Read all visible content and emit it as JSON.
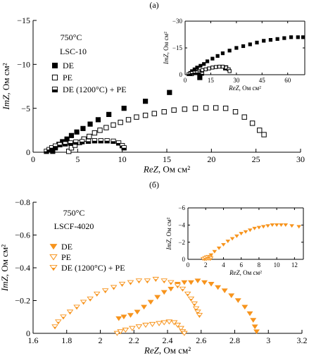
{
  "panel_labels": [
    "(а)",
    "(б)"
  ],
  "chart_data": [
    {
      "type": "scatter",
      "panel": "(а)",
      "xlabel_italic": "ReZ",
      "xlabel_unit": ", Ом см²",
      "ylabel_italic": "ImZ",
      "ylabel_unit": ", Ом см²",
      "annotations": [
        "750°C",
        "LSC-10"
      ],
      "xlim": [
        0,
        30
      ],
      "ylim": [
        0,
        -15
      ],
      "xticks": [
        0,
        5,
        10,
        15,
        20,
        25,
        30
      ],
      "yticks": [
        0,
        -5,
        -10,
        -15
      ],
      "series": [
        {
          "name": "DE",
          "marker": "filled-square",
          "color": "#000000",
          "points": [
            [
              2.2,
              -0.1
            ],
            [
              2.5,
              -0.5
            ],
            [
              2.9,
              -0.9
            ],
            [
              3.3,
              -1.2
            ],
            [
              3.8,
              -1.5
            ],
            [
              4.3,
              -1.9
            ],
            [
              4.9,
              -2.3
            ],
            [
              5.6,
              -2.7
            ],
            [
              6.4,
              -3.2
            ],
            [
              7.3,
              -3.7
            ],
            [
              8.5,
              -4.3
            ],
            [
              10.2,
              -5.0
            ],
            [
              12.6,
              -5.8
            ],
            [
              15.3,
              -6.8
            ],
            [
              18.7,
              -8.5
            ],
            [
              21.6,
              -9.6
            ]
          ]
        },
        {
          "name": "PE",
          "marker": "open-square",
          "color": "#000000",
          "points": [
            [
              4.0,
              -0.1
            ],
            [
              4.3,
              -0.5
            ],
            [
              4.7,
              -0.8
            ],
            [
              5.2,
              -1.1
            ],
            [
              5.7,
              -1.5
            ],
            [
              6.3,
              -1.8
            ],
            [
              6.9,
              -2.2
            ],
            [
              7.5,
              -2.5
            ],
            [
              8.2,
              -2.8
            ],
            [
              9.0,
              -3.1
            ],
            [
              9.8,
              -3.4
            ],
            [
              10.7,
              -3.7
            ],
            [
              11.6,
              -4.0
            ],
            [
              12.6,
              -4.2
            ],
            [
              13.6,
              -4.4
            ],
            [
              14.7,
              -4.6
            ],
            [
              15.8,
              -4.8
            ],
            [
              17.0,
              -4.9
            ],
            [
              18.2,
              -5.0
            ],
            [
              19.4,
              -5.05
            ],
            [
              20.5,
              -5.05
            ],
            [
              21.6,
              -5.0
            ],
            [
              22.7,
              -4.6
            ],
            [
              23.7,
              -4.0
            ],
            [
              24.6,
              -3.3
            ],
            [
              25.4,
              -2.5
            ],
            [
              25.9,
              -2.0
            ]
          ]
        },
        {
          "name": "DE (1200°C) + PE",
          "marker": "half-filled-square",
          "color": "#000000",
          "points": [
            [
              1.5,
              -0.1
            ],
            [
              1.8,
              -0.3
            ],
            [
              2.1,
              -0.5
            ],
            [
              2.5,
              -0.7
            ],
            [
              3.0,
              -0.85
            ],
            [
              3.6,
              -0.95
            ],
            [
              4.2,
              -1.05
            ],
            [
              4.8,
              -1.15
            ],
            [
              5.5,
              -1.2
            ],
            [
              6.2,
              -1.25
            ],
            [
              6.9,
              -1.3
            ],
            [
              7.6,
              -1.3
            ],
            [
              8.3,
              -1.3
            ],
            [
              9.0,
              -1.25
            ],
            [
              9.6,
              -1.05
            ],
            [
              10.0,
              -0.75
            ],
            [
              10.2,
              -0.5
            ]
          ]
        }
      ],
      "inset": {
        "xlim": [
          0,
          70
        ],
        "ylim": [
          0,
          -30
        ],
        "xticks": [
          0,
          15,
          30,
          45,
          60
        ],
        "yticks": [
          0,
          -15,
          -30
        ],
        "xlabel_italic": "ReZ",
        "xlabel_unit": ", Ом см²",
        "ylabel_italic": "ImZ",
        "ylabel_unit": ", Ом см²",
        "series": [
          {
            "name": "DE",
            "marker": "filled-square",
            "points": [
              [
                3,
                -1
              ],
              [
                4,
                -2
              ],
              [
                5.5,
                -3
              ],
              [
                7,
                -4
              ],
              [
                9,
                -5
              ],
              [
                11,
                -6
              ],
              [
                13,
                -7.5
              ],
              [
                16,
                -9
              ],
              [
                19,
                -10.5
              ],
              [
                22,
                -12
              ],
              [
                26,
                -13.5
              ],
              [
                30,
                -15
              ],
              [
                34,
                -16
              ],
              [
                38,
                -17
              ],
              [
                42,
                -18
              ],
              [
                46,
                -19
              ],
              [
                50,
                -19.5
              ],
              [
                54,
                -20
              ],
              [
                58,
                -20.5
              ],
              [
                62,
                -21
              ],
              [
                66,
                -21
              ],
              [
                69,
                -21
              ]
            ]
          },
          {
            "name": "PE",
            "marker": "open-square",
            "points": [
              [
                4,
                -0.3
              ],
              [
                5,
                -1
              ],
              [
                6.5,
                -1.5
              ],
              [
                8,
                -2
              ],
              [
                10,
                -2.5
              ],
              [
                12,
                -3
              ],
              [
                14,
                -3.5
              ],
              [
                16,
                -4
              ],
              [
                18,
                -4.3
              ],
              [
                20,
                -4.5
              ],
              [
                22,
                -4.5
              ],
              [
                24,
                -4
              ],
              [
                25.5,
                -3
              ],
              [
                26,
                -2
              ]
            ]
          },
          {
            "name": "DE (1200°C) + PE",
            "marker": "half-filled-square",
            "points": [
              [
                2,
                -0.3
              ],
              [
                3,
                -0.6
              ],
              [
                4,
                -0.9
              ],
              [
                5.5,
                -1.1
              ],
              [
                7,
                -1.2
              ],
              [
                8.5,
                -1.2
              ],
              [
                9.5,
                -0.9
              ],
              [
                10,
                -0.5
              ]
            ]
          }
        ]
      }
    },
    {
      "type": "scatter",
      "panel": "(б)",
      "xlabel_italic": "ReZ",
      "xlabel_unit": ", Ом см²",
      "ylabel_italic": "ImZ",
      "ylabel_unit": ", Ом см²",
      "annotations": [
        "750°C",
        "LSCF-4020"
      ],
      "xlim": [
        1.6,
        3.2
      ],
      "ylim": [
        0,
        -0.8
      ],
      "xticks": [
        1.6,
        1.8,
        2.0,
        2.2,
        2.4,
        2.6,
        2.8,
        3.0,
        3.2
      ],
      "yticks": [
        0,
        -0.2,
        -0.4,
        -0.6,
        -0.8
      ],
      "series": [
        {
          "name": "DE",
          "marker": "filled-triangle-down",
          "color": "#f7941d",
          "points": [
            [
              2.11,
              -0.09
            ],
            [
              2.14,
              -0.1
            ],
            [
              2.18,
              -0.11
            ],
            [
              2.22,
              -0.13
            ],
            [
              2.26,
              -0.16
            ],
            [
              2.3,
              -0.19
            ],
            [
              2.34,
              -0.22
            ],
            [
              2.38,
              -0.25
            ],
            [
              2.42,
              -0.27
            ],
            [
              2.46,
              -0.3
            ],
            [
              2.5,
              -0.31
            ],
            [
              2.54,
              -0.31
            ],
            [
              2.58,
              -0.32
            ],
            [
              2.62,
              -0.31
            ],
            [
              2.66,
              -0.3
            ],
            [
              2.7,
              -0.28
            ],
            [
              2.74,
              -0.26
            ],
            [
              2.78,
              -0.23
            ],
            [
              2.82,
              -0.2
            ],
            [
              2.86,
              -0.16
            ],
            [
              2.89,
              -0.12
            ],
            [
              2.91,
              -0.08
            ],
            [
              2.92,
              -0.04
            ],
            [
              2.93,
              -0.01
            ]
          ]
        },
        {
          "name": "PE",
          "marker": "open-triangle-down",
          "color": "#f7941d",
          "points": [
            [
              2.1,
              0.0
            ],
            [
              2.12,
              -0.01
            ],
            [
              2.15,
              -0.02
            ],
            [
              2.19,
              -0.03
            ],
            [
              2.23,
              -0.04
            ],
            [
              2.27,
              -0.05
            ],
            [
              2.31,
              -0.055
            ],
            [
              2.35,
              -0.06
            ],
            [
              2.38,
              -0.065
            ],
            [
              2.41,
              -0.07
            ],
            [
              2.44,
              -0.065
            ],
            [
              2.46,
              -0.05
            ],
            [
              2.48,
              -0.03
            ],
            [
              2.49,
              -0.01
            ],
            [
              2.5,
              0.0
            ]
          ]
        },
        {
          "name": "DE (1200°C) + PE",
          "marker": "half-filled-triangle-down",
          "color": "#f7941d",
          "points": [
            [
              1.73,
              -0.04
            ],
            [
              1.75,
              -0.07
            ],
            [
              1.78,
              -0.1
            ],
            [
              1.82,
              -0.13
            ],
            [
              1.86,
              -0.16
            ],
            [
              1.9,
              -0.19
            ],
            [
              1.94,
              -0.21
            ],
            [
              1.98,
              -0.24
            ],
            [
              2.03,
              -0.26
            ],
            [
              2.08,
              -0.28
            ],
            [
              2.13,
              -0.3
            ],
            [
              2.18,
              -0.31
            ],
            [
              2.23,
              -0.32
            ],
            [
              2.28,
              -0.32
            ],
            [
              2.33,
              -0.33
            ],
            [
              2.38,
              -0.32
            ],
            [
              2.42,
              -0.31
            ],
            [
              2.46,
              -0.29
            ],
            [
              2.49,
              -0.27
            ],
            [
              2.52,
              -0.24
            ],
            [
              2.54,
              -0.21
            ],
            [
              2.56,
              -0.18
            ],
            [
              2.57,
              -0.15
            ],
            [
              2.58,
              -0.13
            ],
            [
              2.59,
              -0.11
            ]
          ]
        }
      ],
      "inset": {
        "xlim": [
          0,
          13
        ],
        "ylim": [
          0,
          -6
        ],
        "xticks": [
          0,
          2,
          4,
          6,
          8,
          10,
          12
        ],
        "yticks": [
          0,
          -2,
          -4,
          -6
        ],
        "xlabel_italic": "ReZ",
        "xlabel_unit": ", Ом см²",
        "ylabel_italic": "ImZ",
        "ylabel_unit": ", Ом см²",
        "series": [
          {
            "name": "DE",
            "marker": "filled-triangle-down",
            "points": [
              [
                2.2,
                -0.2
              ],
              [
                2.6,
                -0.5
              ],
              [
                3.0,
                -0.9
              ],
              [
                3.5,
                -1.3
              ],
              [
                4.0,
                -1.7
              ],
              [
                4.5,
                -2.1
              ],
              [
                5.0,
                -2.4
              ],
              [
                5.5,
                -2.7
              ],
              [
                6.0,
                -3.0
              ],
              [
                6.5,
                -3.2
              ],
              [
                7.0,
                -3.4
              ],
              [
                7.5,
                -3.6
              ],
              [
                8.0,
                -3.7
              ],
              [
                8.5,
                -3.8
              ],
              [
                9.0,
                -3.9
              ],
              [
                9.5,
                -4.0
              ],
              [
                10.0,
                -4.0
              ],
              [
                10.5,
                -4.0
              ],
              [
                11.0,
                -4.0
              ],
              [
                11.7,
                -3.9
              ],
              [
                12.5,
                -3.8
              ]
            ]
          },
          {
            "name": "PE",
            "marker": "open-triangle-down",
            "points": [
              [
                1.9,
                -0.02
              ],
              [
                2.1,
                -0.05
              ],
              [
                2.3,
                -0.08
              ],
              [
                2.5,
                -0.06
              ]
            ]
          },
          {
            "name": "DE (1200°C) + PE",
            "marker": "half-filled-triangle-down",
            "points": [
              [
                1.7,
                -0.05
              ],
              [
                1.9,
                -0.15
              ],
              [
                2.1,
                -0.25
              ],
              [
                2.3,
                -0.3
              ],
              [
                2.5,
                -0.25
              ],
              [
                2.6,
                -0.12
              ]
            ]
          }
        ]
      }
    }
  ]
}
